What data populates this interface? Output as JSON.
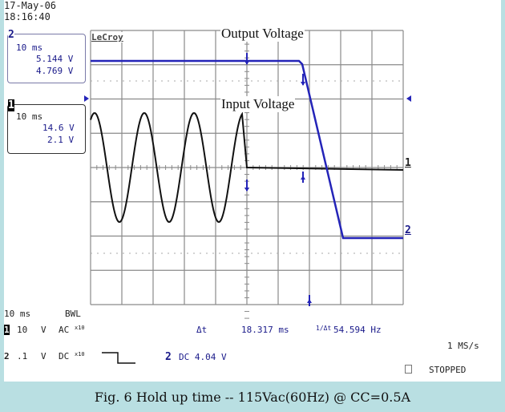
{
  "header": {
    "date": "17-May-06",
    "time": "18:16:40"
  },
  "channel2_box": {
    "id": "2",
    "timebase": "10 ms",
    "v1": "5.144 V",
    "v2": "4.769 V"
  },
  "channel1_box": {
    "id": "1",
    "timebase": "10 ms",
    "v1": "14.6 V",
    "v2": "2.1 V"
  },
  "brand": "LeCroy",
  "annotations": {
    "output": "Output Voltage",
    "input": "Input Voltage"
  },
  "trace_markers": {
    "ch1": "1",
    "ch2": "2"
  },
  "footer": {
    "timebase": "10 ms",
    "bwl": "BWL",
    "ch1_row": {
      "id": "1",
      "scale": "10",
      "unit": "V",
      "coupling": "AC",
      "probe": "x10"
    },
    "ch2_row": {
      "id": "2",
      "scale": ".1",
      "unit": "V",
      "coupling": "DC",
      "probe": "x10"
    },
    "delta_t_label": "Δt",
    "delta_t": "18.317 ms",
    "inv_label": "1/Δt",
    "freq": "54.594 Hz",
    "trigger": {
      "id": "2",
      "text": "DC 4.04 V"
    },
    "sample_rate": "1 MS/s",
    "status": "STOPPED"
  },
  "caption": "Fig. 6  Hold up time  -- 115Vac(60Hz) @ CC=0.5A",
  "colors": {
    "ch1": "#111111",
    "ch2": "#2424b8",
    "grid": "#8a8a8a",
    "background_frame": "#b9dfe2"
  }
}
